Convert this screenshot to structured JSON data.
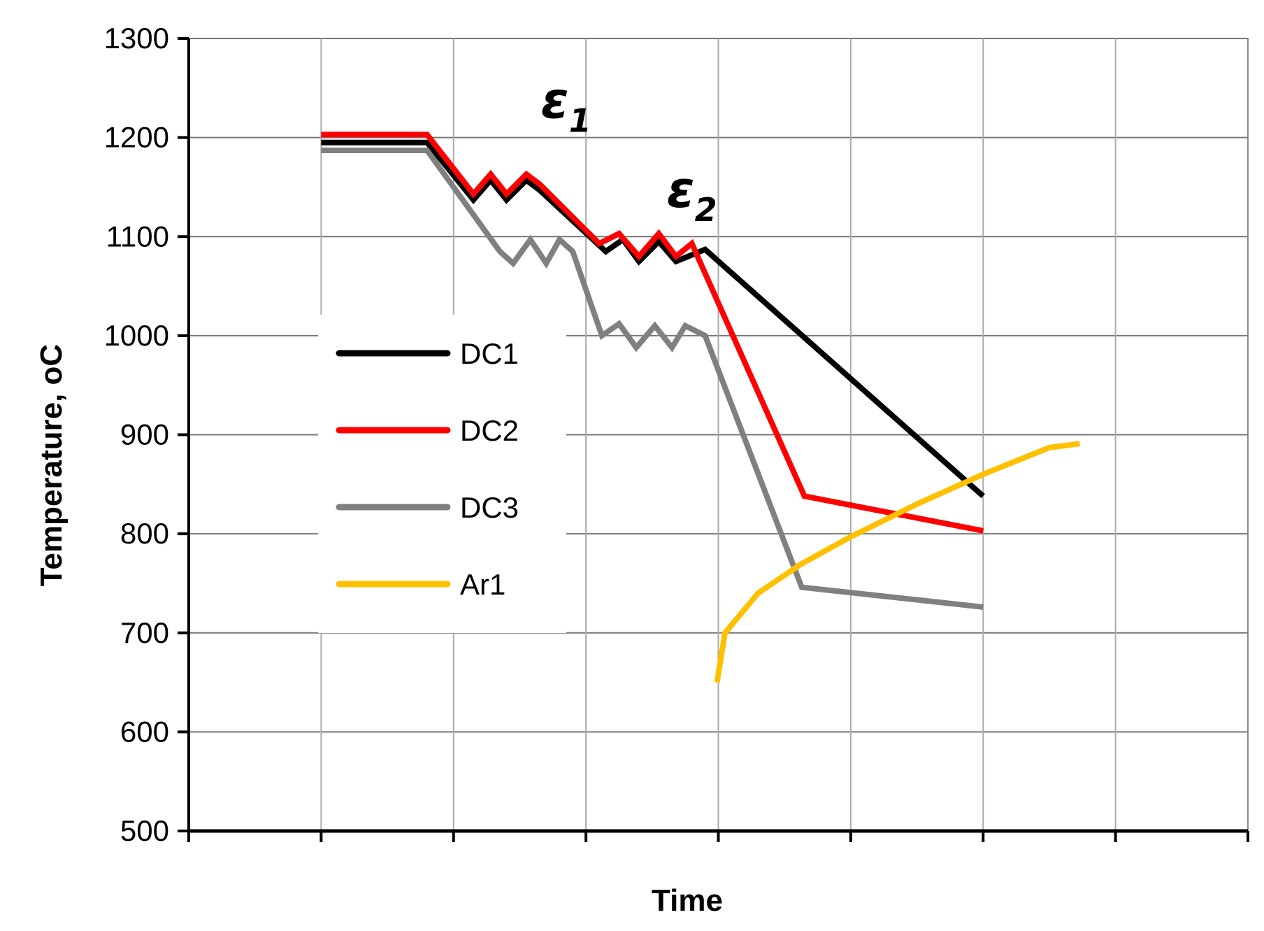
{
  "chart_data": {
    "type": "line",
    "xlabel": "Time",
    "ylabel": "Temperature, ",
    "ylabel_unit": "oC",
    "ylim": [
      500,
      1300
    ],
    "yticks": [
      500,
      600,
      700,
      800,
      900,
      1000,
      1100,
      1200,
      1300
    ],
    "xlim": [
      0,
      8
    ],
    "x_ticks_labeled": false,
    "grid": true,
    "legend_position": "left",
    "annotations": [
      {
        "base": "ε",
        "sub": "1",
        "x": 2.85,
        "y": 1220
      },
      {
        "base": "ε",
        "sub": "2",
        "x": 3.8,
        "y": 1130
      }
    ],
    "series": [
      {
        "name": "DC1",
        "color": "#000000",
        "points": [
          [
            1.0,
            1195
          ],
          [
            1.8,
            1195
          ],
          [
            2.15,
            1137
          ],
          [
            2.28,
            1157
          ],
          [
            2.4,
            1137
          ],
          [
            2.55,
            1157
          ],
          [
            2.65,
            1147
          ],
          [
            3.15,
            1085
          ],
          [
            3.28,
            1097
          ],
          [
            3.4,
            1075
          ],
          [
            3.55,
            1095
          ],
          [
            3.68,
            1075
          ],
          [
            3.9,
            1087
          ],
          [
            6.0,
            838
          ]
        ]
      },
      {
        "name": "DC2",
        "color": "#ff0000",
        "points": [
          [
            1.0,
            1203
          ],
          [
            1.8,
            1203
          ],
          [
            2.15,
            1143
          ],
          [
            2.28,
            1163
          ],
          [
            2.4,
            1143
          ],
          [
            2.55,
            1163
          ],
          [
            2.65,
            1153
          ],
          [
            3.1,
            1093
          ],
          [
            3.25,
            1103
          ],
          [
            3.4,
            1080
          ],
          [
            3.55,
            1103
          ],
          [
            3.68,
            1080
          ],
          [
            3.8,
            1093
          ],
          [
            4.65,
            838
          ],
          [
            6.0,
            803
          ]
        ]
      },
      {
        "name": "DC3",
        "color": "#808080",
        "points": [
          [
            1.0,
            1187
          ],
          [
            1.8,
            1187
          ],
          [
            2.35,
            1085
          ],
          [
            2.45,
            1073
          ],
          [
            2.58,
            1097
          ],
          [
            2.7,
            1073
          ],
          [
            2.8,
            1097
          ],
          [
            2.9,
            1085
          ],
          [
            3.12,
            1000
          ],
          [
            3.25,
            1012
          ],
          [
            3.38,
            988
          ],
          [
            3.52,
            1010
          ],
          [
            3.65,
            988
          ],
          [
            3.75,
            1010
          ],
          [
            3.9,
            1000
          ],
          [
            4.63,
            746
          ],
          [
            6.0,
            726
          ]
        ]
      },
      {
        "name": "Ar1",
        "color": "#ffc000",
        "points": [
          [
            3.99,
            650
          ],
          [
            4.05,
            700
          ],
          [
            4.3,
            740
          ],
          [
            4.62,
            769
          ],
          [
            5.0,
            797
          ],
          [
            5.5,
            830
          ],
          [
            6.0,
            860
          ],
          [
            6.5,
            887
          ],
          [
            6.73,
            891
          ]
        ]
      }
    ]
  }
}
